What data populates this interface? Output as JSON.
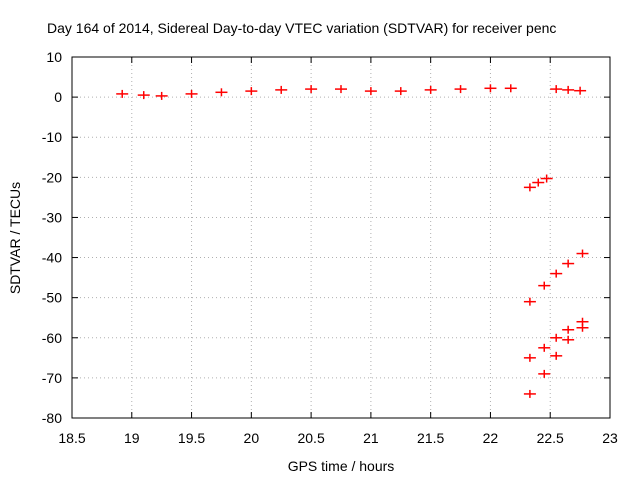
{
  "chart_data": {
    "type": "scatter",
    "title": "Day 164 of 2014, Sidereal Day-to-day VTEC variation (SDTVAR) for receiver penc",
    "xlabel": "GPS time / hours",
    "ylabel": "SDTVAR / TECUs",
    "xlim": [
      18.5,
      23
    ],
    "ylim": [
      -80,
      10
    ],
    "xticks": [
      "18.5",
      "19",
      "19.5",
      "20",
      "20.5",
      "21",
      "21.5",
      "22",
      "22.5",
      "23"
    ],
    "yticks": [
      "10",
      "0",
      "-10",
      "-20",
      "-30",
      "-40",
      "-50",
      "-60",
      "-70",
      "-80"
    ],
    "grid": true,
    "marker": "plus",
    "color": "#ff0000",
    "series": [
      {
        "x": [
          18.92,
          19.1,
          19.25,
          19.5,
          19.75,
          20.0,
          20.25,
          20.5,
          20.75,
          21.0,
          21.25,
          21.5,
          21.75,
          22.0,
          22.17
        ],
        "y": [
          0.8,
          0.5,
          0.3,
          0.8,
          1.2,
          1.5,
          1.8,
          2.0,
          2.0,
          1.5,
          1.5,
          1.8,
          2.0,
          2.2,
          2.2
        ]
      },
      {
        "x": [
          22.55,
          22.65,
          22.75
        ],
        "y": [
          2.0,
          1.8,
          1.6
        ]
      },
      {
        "x": [
          22.33,
          22.4,
          22.47
        ],
        "y": [
          -22.5,
          -21.3,
          -20.3
        ]
      },
      {
        "x": [
          22.33,
          22.45,
          22.55,
          22.65,
          22.77
        ],
        "y": [
          -51,
          -47,
          -44,
          -41.5,
          -39
        ]
      },
      {
        "x": [
          22.33,
          22.45,
          22.55,
          22.65,
          22.77
        ],
        "y": [
          -65,
          -62.5,
          -60,
          -58,
          -56
        ]
      },
      {
        "x": [
          22.33,
          22.45,
          22.55,
          22.65,
          22.77
        ],
        "y": [
          -74,
          -69,
          -64.5,
          -60.5,
          -57.5
        ]
      }
    ]
  }
}
